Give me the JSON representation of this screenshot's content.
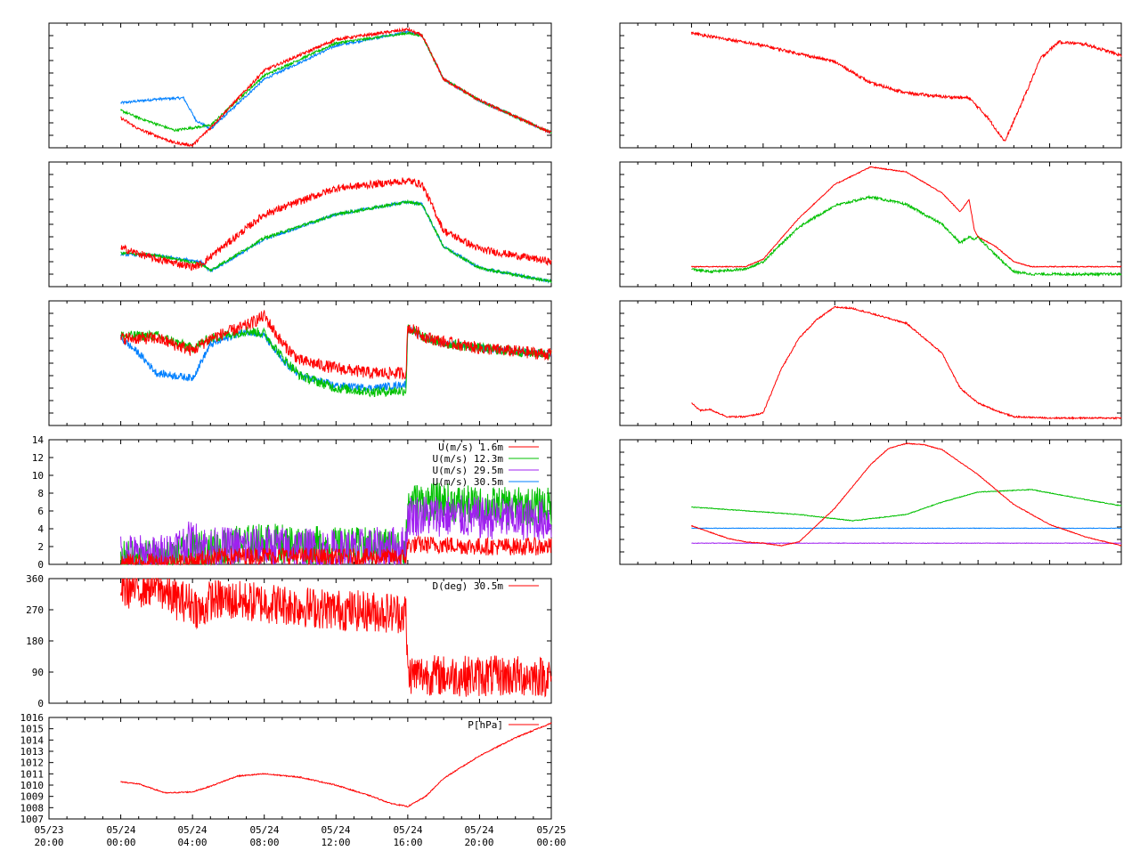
{
  "colors": {
    "red": "#ff0000",
    "green": "#00c000",
    "blue": "#0080ff",
    "purple": "#a020f0",
    "frame": "#000000"
  },
  "x_axis": {
    "ticks": [
      {
        "top": "05/23",
        "bottom": "20:00"
      },
      {
        "top": "05/24",
        "bottom": "00:00"
      },
      {
        "top": "05/24",
        "bottom": "04:00"
      },
      {
        "top": "05/24",
        "bottom": "08:00"
      },
      {
        "top": "05/24",
        "bottom": "12:00"
      },
      {
        "top": "05/24",
        "bottom": "16:00"
      },
      {
        "top": "05/24",
        "bottom": "20:00"
      },
      {
        "top": "05/25",
        "bottom": "00:00"
      }
    ],
    "range_hours": [
      -4,
      24
    ]
  },
  "chart_data": [
    {
      "id": "temp-profile-1",
      "type": "line",
      "ylim": [
        0,
        1
      ],
      "show_y_labels": false,
      "series": [
        {
          "color_key": "blue",
          "noise": 0.01,
          "x": [
            0,
            2,
            3.5,
            4.2,
            5,
            8,
            12,
            16,
            16.8,
            18,
            20,
            24
          ],
          "y": [
            0.36,
            0.39,
            0.4,
            0.22,
            0.15,
            0.55,
            0.82,
            0.93,
            0.9,
            0.55,
            0.38,
            0.12
          ]
        },
        {
          "color_key": "green",
          "noise": 0.01,
          "x": [
            0,
            1,
            3,
            4,
            5,
            8,
            12,
            16,
            16.8,
            18,
            20,
            24
          ],
          "y": [
            0.3,
            0.24,
            0.14,
            0.16,
            0.18,
            0.58,
            0.84,
            0.92,
            0.9,
            0.55,
            0.38,
            0.12
          ]
        },
        {
          "color_key": "red",
          "noise": 0.012,
          "x": [
            0,
            1,
            3,
            4,
            5,
            8,
            12,
            16,
            16.8,
            18,
            20,
            24
          ],
          "y": [
            0.24,
            0.15,
            0.04,
            0.02,
            0.16,
            0.62,
            0.87,
            0.95,
            0.9,
            0.55,
            0.38,
            0.12
          ]
        }
      ]
    },
    {
      "id": "temp-profile-2",
      "type": "line",
      "ylim": [
        0,
        1
      ],
      "show_y_labels": false,
      "series": [
        {
          "color_key": "blue",
          "noise": 0.012,
          "x": [
            0,
            2,
            3.5,
            4.5,
            5,
            8,
            12,
            16,
            16.8,
            18,
            20,
            24
          ],
          "y": [
            0.26,
            0.25,
            0.22,
            0.2,
            0.12,
            0.38,
            0.58,
            0.68,
            0.66,
            0.32,
            0.15,
            0.04
          ]
        },
        {
          "color_key": "green",
          "noise": 0.012,
          "x": [
            0,
            2,
            3.5,
            4.5,
            5,
            8,
            12,
            16,
            16.8,
            18,
            20,
            24
          ],
          "y": [
            0.27,
            0.25,
            0.21,
            0.18,
            0.13,
            0.39,
            0.58,
            0.68,
            0.66,
            0.32,
            0.15,
            0.04
          ]
        },
        {
          "color_key": "red",
          "noise": 0.03,
          "x": [
            0,
            2,
            4,
            4.5,
            5,
            8,
            12,
            16,
            16.8,
            18,
            20,
            24
          ],
          "y": [
            0.31,
            0.22,
            0.16,
            0.18,
            0.24,
            0.58,
            0.79,
            0.85,
            0.82,
            0.45,
            0.3,
            0.2
          ]
        }
      ]
    },
    {
      "id": "humidity-profile",
      "type": "line",
      "ylim": [
        0,
        1
      ],
      "show_y_labels": false,
      "series": [
        {
          "color_key": "blue",
          "noise": 0.03,
          "x": [
            0,
            1,
            2,
            3,
            4,
            5,
            7,
            8,
            9,
            10,
            12,
            14,
            15.9,
            16,
            17,
            18,
            20,
            24
          ],
          "y": [
            0.7,
            0.58,
            0.42,
            0.4,
            0.38,
            0.65,
            0.76,
            0.72,
            0.52,
            0.4,
            0.32,
            0.3,
            0.33,
            0.78,
            0.7,
            0.66,
            0.62,
            0.57
          ]
        },
        {
          "color_key": "green",
          "noise": 0.04,
          "x": [
            0,
            2,
            4,
            5,
            7,
            8,
            9,
            10,
            12,
            14,
            15.9,
            16,
            17,
            18,
            20,
            24
          ],
          "y": [
            0.72,
            0.72,
            0.62,
            0.7,
            0.76,
            0.74,
            0.55,
            0.4,
            0.3,
            0.27,
            0.28,
            0.78,
            0.7,
            0.66,
            0.62,
            0.57
          ]
        },
        {
          "color_key": "red",
          "noise": 0.05,
          "x": [
            0,
            2,
            4,
            5,
            7,
            8,
            9,
            10,
            12,
            14,
            15.9,
            16,
            17,
            18,
            20,
            24
          ],
          "y": [
            0.7,
            0.7,
            0.6,
            0.7,
            0.8,
            0.88,
            0.66,
            0.52,
            0.46,
            0.42,
            0.42,
            0.79,
            0.71,
            0.67,
            0.62,
            0.57
          ]
        }
      ]
    },
    {
      "id": "wind-speed",
      "type": "line",
      "ylim": [
        0,
        14
      ],
      "show_y_labels": true,
      "yticks": [
        0,
        2,
        4,
        6,
        8,
        10,
        12,
        14
      ],
      "legend": [
        {
          "label": "U(m/s)  1.6m",
          "color_key": "red"
        },
        {
          "label": "U(m/s) 12.3m",
          "color_key": "green"
        },
        {
          "label": "U(m/s) 29.5m",
          "color_key": "purple"
        },
        {
          "label": "U(m/s) 30.5m",
          "color_key": "blue"
        }
      ],
      "series": [
        {
          "color_key": "green",
          "noise": 2.2,
          "x": [
            0,
            3,
            4,
            5,
            8,
            12,
            15.9,
            16,
            18,
            20,
            24
          ],
          "y": [
            0.5,
            0.6,
            1.5,
            1.8,
            2.5,
            2.0,
            2.0,
            7.0,
            7.0,
            6.5,
            6.5
          ]
        },
        {
          "color_key": "purple",
          "noise": 2.4,
          "x": [
            0,
            2,
            3,
            4,
            5,
            8,
            12,
            15.9,
            16,
            18,
            20,
            24
          ],
          "y": [
            1.2,
            0.8,
            1.8,
            2.6,
            1.8,
            2.0,
            1.5,
            2.0,
            5.5,
            5.5,
            5.2,
            5.0
          ]
        },
        {
          "color_key": "red",
          "noise": 1.0,
          "x": [
            0,
            4,
            5,
            8,
            12,
            15.9,
            16,
            18,
            20,
            24
          ],
          "y": [
            0.2,
            0.3,
            0.8,
            1.0,
            0.8,
            0.8,
            2.2,
            2.2,
            2.0,
            2.0
          ]
        }
      ]
    },
    {
      "id": "wind-direction",
      "type": "line",
      "ylim": [
        0,
        360
      ],
      "show_y_labels": true,
      "yticks": [
        0,
        90,
        180,
        270,
        360
      ],
      "legend": [
        {
          "label": "D(deg)  30.5m",
          "color_key": "red"
        }
      ],
      "series": [
        {
          "color_key": "red",
          "noise": 60,
          "x": [
            0,
            2,
            3,
            4,
            4.5,
            5,
            8,
            12,
            15.9,
            16,
            18,
            20,
            24
          ],
          "y": [
            330,
            340,
            300,
            290,
            260,
            300,
            290,
            270,
            260,
            85,
            80,
            78,
            78
          ]
        }
      ]
    },
    {
      "id": "pressure",
      "type": "line",
      "ylim": [
        1007,
        1016
      ],
      "show_y_labels": true,
      "yticks": [
        1007,
        1008,
        1009,
        1010,
        1011,
        1012,
        1013,
        1014,
        1015,
        1016
      ],
      "legend": [
        {
          "label": "P[hPa]",
          "color_key": "red"
        }
      ],
      "series": [
        {
          "color_key": "red",
          "noise": 0.05,
          "x": [
            0,
            1,
            2.5,
            4,
            5,
            6.5,
            8,
            10,
            12,
            14,
            15,
            16,
            17,
            18,
            20,
            22,
            24
          ],
          "y": [
            1010.3,
            1010.1,
            1009.3,
            1009.4,
            1009.9,
            1010.8,
            1011.0,
            1010.7,
            1010.0,
            1009.0,
            1008.4,
            1008.1,
            1009.0,
            1010.6,
            1012.6,
            1014.2,
            1015.5
          ]
        }
      ]
    },
    {
      "id": "right-1",
      "type": "line",
      "ylim": [
        0,
        1
      ],
      "show_y_labels": false,
      "series": [
        {
          "color_key": "red",
          "noise": 0.012,
          "x": [
            0,
            4,
            8,
            10,
            12,
            14,
            15.5,
            16.5,
            17.5,
            18.5,
            19.5,
            20.5,
            22,
            24
          ],
          "y": [
            0.92,
            0.82,
            0.69,
            0.52,
            0.44,
            0.41,
            0.4,
            0.25,
            0.05,
            0.38,
            0.72,
            0.85,
            0.83,
            0.74
          ]
        }
      ]
    },
    {
      "id": "right-2",
      "type": "line",
      "ylim": [
        0,
        1
      ],
      "show_y_labels": false,
      "series": [
        {
          "color_key": "green",
          "noise": 0.01,
          "x": [
            0,
            1,
            3,
            4,
            6,
            8,
            10,
            12,
            14,
            15,
            15.5,
            15.8,
            16,
            17,
            18,
            19,
            24
          ],
          "y": [
            0.14,
            0.12,
            0.14,
            0.2,
            0.48,
            0.65,
            0.72,
            0.66,
            0.5,
            0.35,
            0.4,
            0.38,
            0.4,
            0.25,
            0.12,
            0.1,
            0.1
          ]
        },
        {
          "color_key": "red",
          "noise": 0.004,
          "x": [
            0,
            3,
            4,
            6,
            8,
            10,
            12,
            14,
            15,
            15.5,
            15.8,
            16,
            17,
            18,
            19,
            24
          ],
          "y": [
            0.16,
            0.16,
            0.22,
            0.55,
            0.82,
            0.96,
            0.92,
            0.75,
            0.6,
            0.7,
            0.45,
            0.4,
            0.32,
            0.2,
            0.16,
            0.16
          ]
        }
      ]
    },
    {
      "id": "right-3",
      "type": "line",
      "ylim": [
        0,
        1
      ],
      "show_y_labels": false,
      "series": [
        {
          "color_key": "red",
          "noise": 0.006,
          "x": [
            0,
            0.5,
            1,
            2,
            3,
            4,
            5,
            6,
            7,
            8,
            9,
            10,
            12,
            14,
            15,
            16,
            17,
            18,
            20,
            24
          ],
          "y": [
            0.18,
            0.12,
            0.13,
            0.07,
            0.07,
            0.1,
            0.45,
            0.7,
            0.85,
            0.95,
            0.94,
            0.9,
            0.82,
            0.58,
            0.3,
            0.18,
            0.12,
            0.07,
            0.06,
            0.06
          ]
        }
      ]
    },
    {
      "id": "right-4",
      "type": "line",
      "ylim": [
        0,
        1
      ],
      "show_y_labels": false,
      "series": [
        {
          "color_key": "blue",
          "noise": 0.002,
          "x": [
            0,
            24
          ],
          "y": [
            0.29,
            0.29
          ]
        },
        {
          "color_key": "purple",
          "noise": 0.002,
          "x": [
            0,
            24
          ],
          "y": [
            0.17,
            0.17
          ]
        },
        {
          "color_key": "green",
          "noise": 0.003,
          "x": [
            0,
            3,
            6,
            9,
            12,
            14,
            16,
            19,
            22,
            24
          ],
          "y": [
            0.46,
            0.43,
            0.4,
            0.35,
            0.4,
            0.5,
            0.58,
            0.6,
            0.52,
            0.47
          ]
        },
        {
          "color_key": "red",
          "noise": 0.003,
          "x": [
            0,
            1,
            2,
            3,
            4,
            5,
            6,
            8,
            10,
            11,
            12,
            13,
            14,
            16,
            18,
            20,
            22,
            24
          ],
          "y": [
            0.31,
            0.26,
            0.21,
            0.18,
            0.17,
            0.15,
            0.18,
            0.45,
            0.8,
            0.93,
            0.97,
            0.96,
            0.92,
            0.72,
            0.48,
            0.32,
            0.22,
            0.15
          ]
        }
      ]
    }
  ]
}
